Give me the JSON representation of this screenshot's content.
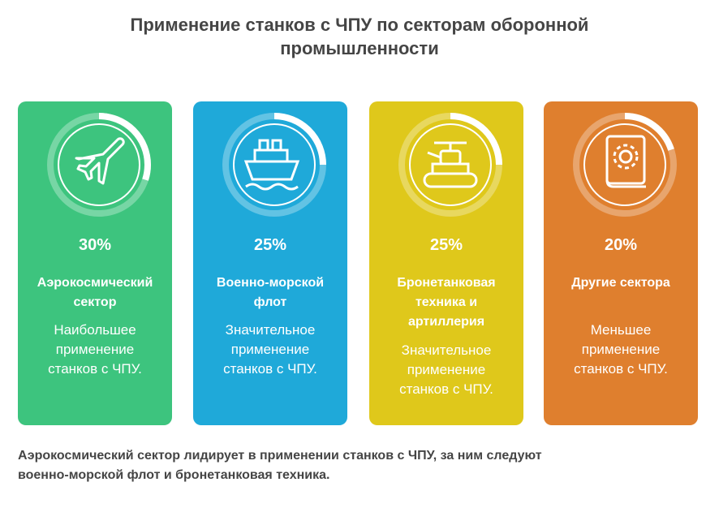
{
  "chart_data": {
    "type": "ring-cards",
    "title": "Применение станков с ЧПУ по секторам оборонной промышленности",
    "categories": [
      "Аэрокосмический сектор",
      "Военно-морской флот",
      "Бронетанковая техника и артиллерия",
      "Другие сектора"
    ],
    "values": [
      30,
      25,
      25,
      20
    ],
    "value_labels": [
      "30%",
      "25%",
      "25%",
      "20%"
    ],
    "ylim": [
      0,
      100
    ],
    "descriptions": [
      "Наибольшее применение станков с ЧПУ.",
      "Значительное применение станков с ЧПУ.",
      "Значительное применение станков с ЧПУ.",
      "Меньшее применение станков с ЧПУ."
    ],
    "colors": [
      "#3dc47e",
      "#1fa9d9",
      "#dfc81b",
      "#df7f2e"
    ],
    "note": "Аэрокосмический сектор лидирует в применении станков с ЧПУ, за ним следуют военно-морской флот и бронетанковая техника."
  }
}
